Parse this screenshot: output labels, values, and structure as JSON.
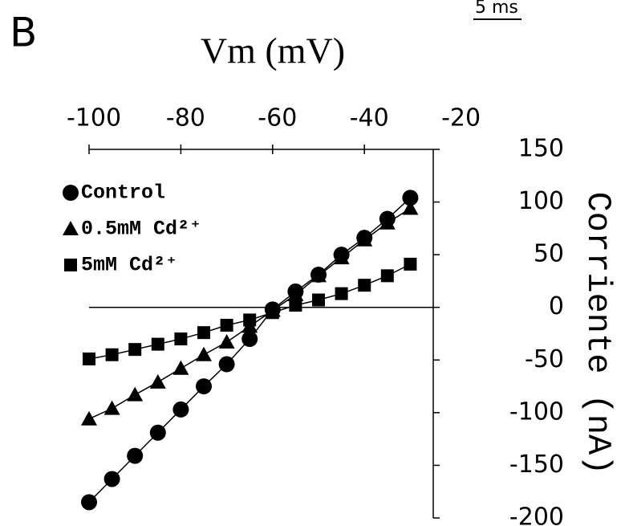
{
  "chart_data": {
    "type": "line",
    "panel_label": "B",
    "scale_label": "5 ms",
    "xlabel": "Vm (mV)",
    "ylabel": "Corriente (nA)",
    "x": [
      -100,
      -95,
      -90,
      -85,
      -80,
      -75,
      -70,
      -65,
      -60,
      -55,
      -50,
      -45,
      -40,
      -35,
      -30
    ],
    "series": [
      {
        "name": "Control",
        "marker": "circle",
        "color": "#000000",
        "values": [
          -185,
          -163,
          -141,
          -119,
          -97,
          -75,
          -54,
          -30,
          -2,
          15,
          31,
          50,
          66,
          84,
          104
        ]
      },
      {
        "name": "0.5mM Cd²⁺",
        "marker": "triangle",
        "color": "#000000",
        "values": [
          -106,
          -96,
          -83,
          -71,
          -58,
          -45,
          -33,
          -18,
          -3,
          12,
          30,
          47,
          64,
          80,
          94
        ]
      },
      {
        "name": "5mM Cd²⁺",
        "marker": "square",
        "color": "#000000",
        "values": [
          -49,
          -45,
          -40,
          -35,
          -30,
          -24,
          -17,
          -12,
          -5,
          2,
          7,
          13,
          21,
          30,
          41
        ]
      }
    ],
    "xlim": [
      -100,
      -25
    ],
    "xticks": [
      -100,
      -80,
      -60,
      -40,
      -20
    ],
    "ylim": [
      -200,
      150
    ],
    "yticks": [
      -200,
      -150,
      -100,
      -50,
      0,
      50,
      100,
      150
    ]
  }
}
